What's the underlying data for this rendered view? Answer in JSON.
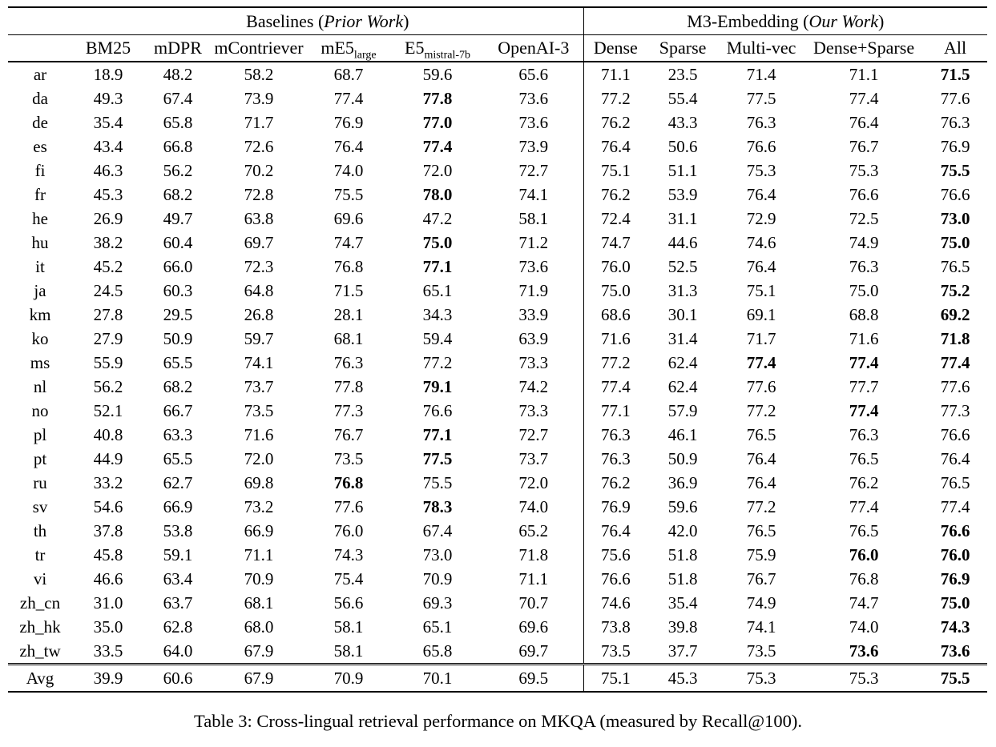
{
  "colors": {
    "text": "#000000",
    "background": "#ffffff",
    "rule": "#000000"
  },
  "caption": "Table 3: Cross-lingual retrieval performance on MKQA (measured by Recall@100).",
  "table": {
    "groups": [
      {
        "key": "baselines",
        "prefix": "Baselines (",
        "italic": "Prior Work",
        "suffix": ")",
        "span": 6
      },
      {
        "key": "m3-embedding",
        "prefix": "M3-Embedding (",
        "italic": "Our Work",
        "suffix": ")",
        "span": 5
      }
    ],
    "lang_header": "",
    "columns": [
      {
        "key": "bm25",
        "label": "BM25"
      },
      {
        "key": "mdpr",
        "label": "mDPR"
      },
      {
        "key": "mcontriever",
        "label": "mContriever"
      },
      {
        "key": "me5-large",
        "label": "mE5",
        "sub": "large"
      },
      {
        "key": "e5-mistral-7b",
        "label": "E5",
        "sub": "mistral-7b"
      },
      {
        "key": "openai-3",
        "label": "OpenAI-3"
      },
      {
        "key": "dense",
        "label": "Dense"
      },
      {
        "key": "sparse",
        "label": "Sparse"
      },
      {
        "key": "multi-vec",
        "label": "Multi-vec"
      },
      {
        "key": "dense-sparse",
        "label": "Dense+Sparse"
      },
      {
        "key": "all",
        "label": "All"
      }
    ],
    "rows": [
      {
        "lang": "ar",
        "values": [
          "18.9",
          "48.2",
          "58.2",
          "68.7",
          "59.6",
          "65.6",
          "71.1",
          "23.5",
          "71.4",
          "71.1",
          "71.5"
        ],
        "bold": [
          10
        ]
      },
      {
        "lang": "da",
        "values": [
          "49.3",
          "67.4",
          "73.9",
          "77.4",
          "77.8",
          "73.6",
          "77.2",
          "55.4",
          "77.5",
          "77.4",
          "77.6"
        ],
        "bold": [
          4
        ]
      },
      {
        "lang": "de",
        "values": [
          "35.4",
          "65.8",
          "71.7",
          "76.9",
          "77.0",
          "73.6",
          "76.2",
          "43.3",
          "76.3",
          "76.4",
          "76.3"
        ],
        "bold": [
          4
        ]
      },
      {
        "lang": "es",
        "values": [
          "43.4",
          "66.8",
          "72.6",
          "76.4",
          "77.4",
          "73.9",
          "76.4",
          "50.6",
          "76.6",
          "76.7",
          "76.9"
        ],
        "bold": [
          4
        ]
      },
      {
        "lang": "fi",
        "values": [
          "46.3",
          "56.2",
          "70.2",
          "74.0",
          "72.0",
          "72.7",
          "75.1",
          "51.1",
          "75.3",
          "75.3",
          "75.5"
        ],
        "bold": [
          10
        ]
      },
      {
        "lang": "fr",
        "values": [
          "45.3",
          "68.2",
          "72.8",
          "75.5",
          "78.0",
          "74.1",
          "76.2",
          "53.9",
          "76.4",
          "76.6",
          "76.6"
        ],
        "bold": [
          4
        ]
      },
      {
        "lang": "he",
        "values": [
          "26.9",
          "49.7",
          "63.8",
          "69.6",
          "47.2",
          "58.1",
          "72.4",
          "31.1",
          "72.9",
          "72.5",
          "73.0"
        ],
        "bold": [
          10
        ]
      },
      {
        "lang": "hu",
        "values": [
          "38.2",
          "60.4",
          "69.7",
          "74.7",
          "75.0",
          "71.2",
          "74.7",
          "44.6",
          "74.6",
          "74.9",
          "75.0"
        ],
        "bold": [
          4,
          10
        ]
      },
      {
        "lang": "it",
        "values": [
          "45.2",
          "66.0",
          "72.3",
          "76.8",
          "77.1",
          "73.6",
          "76.0",
          "52.5",
          "76.4",
          "76.3",
          "76.5"
        ],
        "bold": [
          4
        ]
      },
      {
        "lang": "ja",
        "values": [
          "24.5",
          "60.3",
          "64.8",
          "71.5",
          "65.1",
          "71.9",
          "75.0",
          "31.3",
          "75.1",
          "75.0",
          "75.2"
        ],
        "bold": [
          10
        ]
      },
      {
        "lang": "km",
        "values": [
          "27.8",
          "29.5",
          "26.8",
          "28.1",
          "34.3",
          "33.9",
          "68.6",
          "30.1",
          "69.1",
          "68.8",
          "69.2"
        ],
        "bold": [
          10
        ]
      },
      {
        "lang": "ko",
        "values": [
          "27.9",
          "50.9",
          "59.7",
          "68.1",
          "59.4",
          "63.9",
          "71.6",
          "31.4",
          "71.7",
          "71.6",
          "71.8"
        ],
        "bold": [
          10
        ]
      },
      {
        "lang": "ms",
        "values": [
          "55.9",
          "65.5",
          "74.1",
          "76.3",
          "77.2",
          "73.3",
          "77.2",
          "62.4",
          "77.4",
          "77.4",
          "77.4"
        ],
        "bold": [
          8,
          9,
          10
        ]
      },
      {
        "lang": "nl",
        "values": [
          "56.2",
          "68.2",
          "73.7",
          "77.8",
          "79.1",
          "74.2",
          "77.4",
          "62.4",
          "77.6",
          "77.7",
          "77.6"
        ],
        "bold": [
          4
        ]
      },
      {
        "lang": "no",
        "values": [
          "52.1",
          "66.7",
          "73.5",
          "77.3",
          "76.6",
          "73.3",
          "77.1",
          "57.9",
          "77.2",
          "77.4",
          "77.3"
        ],
        "bold": [
          9
        ]
      },
      {
        "lang": "pl",
        "values": [
          "40.8",
          "63.3",
          "71.6",
          "76.7",
          "77.1",
          "72.7",
          "76.3",
          "46.1",
          "76.5",
          "76.3",
          "76.6"
        ],
        "bold": [
          4
        ]
      },
      {
        "lang": "pt",
        "values": [
          "44.9",
          "65.5",
          "72.0",
          "73.5",
          "77.5",
          "73.7",
          "76.3",
          "50.9",
          "76.4",
          "76.5",
          "76.4"
        ],
        "bold": [
          4
        ]
      },
      {
        "lang": "ru",
        "values": [
          "33.2",
          "62.7",
          "69.8",
          "76.8",
          "75.5",
          "72.0",
          "76.2",
          "36.9",
          "76.4",
          "76.2",
          "76.5"
        ],
        "bold": [
          3
        ]
      },
      {
        "lang": "sv",
        "values": [
          "54.6",
          "66.9",
          "73.2",
          "77.6",
          "78.3",
          "74.0",
          "76.9",
          "59.6",
          "77.2",
          "77.4",
          "77.4"
        ],
        "bold": [
          4
        ]
      },
      {
        "lang": "th",
        "values": [
          "37.8",
          "53.8",
          "66.9",
          "76.0",
          "67.4",
          "65.2",
          "76.4",
          "42.0",
          "76.5",
          "76.5",
          "76.6"
        ],
        "bold": [
          10
        ]
      },
      {
        "lang": "tr",
        "values": [
          "45.8",
          "59.1",
          "71.1",
          "74.3",
          "73.0",
          "71.8",
          "75.6",
          "51.8",
          "75.9",
          "76.0",
          "76.0"
        ],
        "bold": [
          9,
          10
        ]
      },
      {
        "lang": "vi",
        "values": [
          "46.6",
          "63.4",
          "70.9",
          "75.4",
          "70.9",
          "71.1",
          "76.6",
          "51.8",
          "76.7",
          "76.8",
          "76.9"
        ],
        "bold": [
          10
        ]
      },
      {
        "lang": "zh_cn",
        "values": [
          "31.0",
          "63.7",
          "68.1",
          "56.6",
          "69.3",
          "70.7",
          "74.6",
          "35.4",
          "74.9",
          "74.7",
          "75.0"
        ],
        "bold": [
          10
        ]
      },
      {
        "lang": "zh_hk",
        "values": [
          "35.0",
          "62.8",
          "68.0",
          "58.1",
          "65.1",
          "69.6",
          "73.8",
          "39.8",
          "74.1",
          "74.0",
          "74.3"
        ],
        "bold": [
          10
        ]
      },
      {
        "lang": "zh_tw",
        "values": [
          "33.5",
          "64.0",
          "67.9",
          "58.1",
          "65.8",
          "69.7",
          "73.5",
          "37.7",
          "73.5",
          "73.6",
          "73.6"
        ],
        "bold": [
          9,
          10
        ]
      }
    ],
    "avg_row": {
      "lang": "Avg",
      "values": [
        "39.9",
        "60.6",
        "67.9",
        "70.9",
        "70.1",
        "69.5",
        "75.1",
        "45.3",
        "75.3",
        "75.3",
        "75.5"
      ],
      "bold": [
        10
      ]
    }
  }
}
